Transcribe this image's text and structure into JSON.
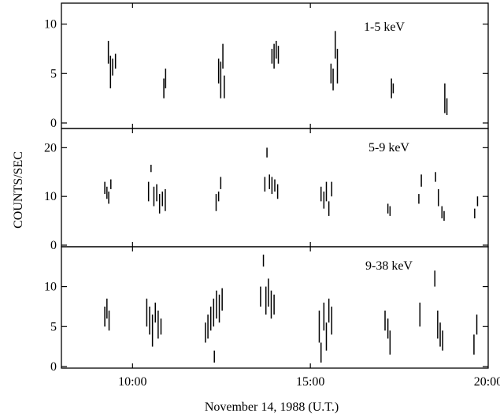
{
  "chart_data": {
    "type": "scatter",
    "ylabel": "COUNTS/SEC",
    "xlabel": "November 14, 1988 (U.T.)",
    "x_unit": "hours U.T.",
    "xlim": [
      8.0,
      20.0
    ],
    "x_ticks": [
      10,
      15,
      20
    ],
    "x_tick_labels": [
      "10:00",
      "15:00",
      "20:00"
    ],
    "panels": [
      {
        "label": "1-5 keV",
        "ylim": [
          0,
          11
        ],
        "y_ticks": [
          0,
          5,
          10
        ],
        "y_tick_labels": [
          "0",
          "5",
          "10"
        ],
        "segments": [
          {
            "x": 9.32,
            "y_low": 6.0,
            "y_high": 8.3
          },
          {
            "x": 9.38,
            "y_low": 3.5,
            "y_high": 6.8
          },
          {
            "x": 9.44,
            "y_low": 4.8,
            "y_high": 6.5
          },
          {
            "x": 9.52,
            "y_low": 5.5,
            "y_high": 7.0
          },
          {
            "x": 10.88,
            "y_low": 2.5,
            "y_high": 4.5
          },
          {
            "x": 10.93,
            "y_low": 3.5,
            "y_high": 5.5
          },
          {
            "x": 12.42,
            "y_low": 4.0,
            "y_high": 6.5
          },
          {
            "x": 12.48,
            "y_low": 2.5,
            "y_high": 6.2
          },
          {
            "x": 12.54,
            "y_low": 5.5,
            "y_high": 8.0
          },
          {
            "x": 12.58,
            "y_low": 2.5,
            "y_high": 4.8
          },
          {
            "x": 13.92,
            "y_low": 6.0,
            "y_high": 7.5
          },
          {
            "x": 13.98,
            "y_low": 5.5,
            "y_high": 8.0
          },
          {
            "x": 14.04,
            "y_low": 6.5,
            "y_high": 8.3
          },
          {
            "x": 14.1,
            "y_low": 6.0,
            "y_high": 7.8
          },
          {
            "x": 15.58,
            "y_low": 4.0,
            "y_high": 6.0
          },
          {
            "x": 15.64,
            "y_low": 3.3,
            "y_high": 5.5
          },
          {
            "x": 15.7,
            "y_low": 6.5,
            "y_high": 9.3
          },
          {
            "x": 15.76,
            "y_low": 4.0,
            "y_high": 7.5
          },
          {
            "x": 17.28,
            "y_low": 2.5,
            "y_high": 4.5
          },
          {
            "x": 17.33,
            "y_low": 3.0,
            "y_high": 4.0
          },
          {
            "x": 18.78,
            "y_low": 1.0,
            "y_high": 4.0
          },
          {
            "x": 18.84,
            "y_low": 0.8,
            "y_high": 2.5
          }
        ]
      },
      {
        "label": "5-9 keV",
        "ylim": [
          0,
          22
        ],
        "y_ticks": [
          0,
          10,
          20
        ],
        "y_tick_labels": [
          "0",
          "10",
          "20"
        ],
        "segments": [
          {
            "x": 9.22,
            "y_low": 10.5,
            "y_high": 13.0
          },
          {
            "x": 9.28,
            "y_low": 9.5,
            "y_high": 12.0
          },
          {
            "x": 9.33,
            "y_low": 8.5,
            "y_high": 11.0
          },
          {
            "x": 9.39,
            "y_low": 11.5,
            "y_high": 13.5
          },
          {
            "x": 10.45,
            "y_low": 9.0,
            "y_high": 13.0
          },
          {
            "x": 10.52,
            "y_low": 15.0,
            "y_high": 16.5
          },
          {
            "x": 10.6,
            "y_low": 8.0,
            "y_high": 12.0
          },
          {
            "x": 10.68,
            "y_low": 9.0,
            "y_high": 12.5
          },
          {
            "x": 10.76,
            "y_low": 6.5,
            "y_high": 10.5
          },
          {
            "x": 10.84,
            "y_low": 8.0,
            "y_high": 11.0
          },
          {
            "x": 10.92,
            "y_low": 7.0,
            "y_high": 11.5
          },
          {
            "x": 12.35,
            "y_low": 7.0,
            "y_high": 10.5
          },
          {
            "x": 12.42,
            "y_low": 9.0,
            "y_high": 11.0
          },
          {
            "x": 12.48,
            "y_low": 11.5,
            "y_high": 14.0
          },
          {
            "x": 13.72,
            "y_low": 11.0,
            "y_high": 14.0
          },
          {
            "x": 13.78,
            "y_low": 18.0,
            "y_high": 20.0
          },
          {
            "x": 13.85,
            "y_low": 11.5,
            "y_high": 14.5
          },
          {
            "x": 13.92,
            "y_low": 10.5,
            "y_high": 14.0
          },
          {
            "x": 14.0,
            "y_low": 11.0,
            "y_high": 13.5
          },
          {
            "x": 14.08,
            "y_low": 9.5,
            "y_high": 12.5
          },
          {
            "x": 15.3,
            "y_low": 9.0,
            "y_high": 12.0
          },
          {
            "x": 15.38,
            "y_low": 7.5,
            "y_high": 11.0
          },
          {
            "x": 15.45,
            "y_low": 9.0,
            "y_high": 13.0
          },
          {
            "x": 15.52,
            "y_low": 6.0,
            "y_high": 9.0
          },
          {
            "x": 15.6,
            "y_low": 10.0,
            "y_high": 13.0
          },
          {
            "x": 17.18,
            "y_low": 6.5,
            "y_high": 8.5
          },
          {
            "x": 17.24,
            "y_low": 6.0,
            "y_high": 8.0
          },
          {
            "x": 18.05,
            "y_low": 8.5,
            "y_high": 10.5
          },
          {
            "x": 18.12,
            "y_low": 12.0,
            "y_high": 14.5
          },
          {
            "x": 18.52,
            "y_low": 13.0,
            "y_high": 15.0
          },
          {
            "x": 18.6,
            "y_low": 8.0,
            "y_high": 11.5
          },
          {
            "x": 18.7,
            "y_low": 5.5,
            "y_high": 8.0
          },
          {
            "x": 18.76,
            "y_low": 5.0,
            "y_high": 7.0
          },
          {
            "x": 19.62,
            "y_low": 5.5,
            "y_high": 7.5
          },
          {
            "x": 19.7,
            "y_low": 8.0,
            "y_high": 10.0
          }
        ]
      },
      {
        "label": "9-38 keV",
        "ylim": [
          0,
          14
        ],
        "y_ticks": [
          0,
          5,
          10
        ],
        "y_tick_labels": [
          "0",
          "5",
          "10"
        ],
        "segments": [
          {
            "x": 9.22,
            "y_low": 5.0,
            "y_high": 7.5
          },
          {
            "x": 9.28,
            "y_low": 6.0,
            "y_high": 8.5
          },
          {
            "x": 9.34,
            "y_low": 4.5,
            "y_high": 7.0
          },
          {
            "x": 10.4,
            "y_low": 5.0,
            "y_high": 8.5
          },
          {
            "x": 10.48,
            "y_low": 4.0,
            "y_high": 7.5
          },
          {
            "x": 10.56,
            "y_low": 2.5,
            "y_high": 6.5
          },
          {
            "x": 10.64,
            "y_low": 5.5,
            "y_high": 8.0
          },
          {
            "x": 10.72,
            "y_low": 3.5,
            "y_high": 7.0
          },
          {
            "x": 10.8,
            "y_low": 4.0,
            "y_high": 6.0
          },
          {
            "x": 12.05,
            "y_low": 3.0,
            "y_high": 5.5
          },
          {
            "x": 12.12,
            "y_low": 3.5,
            "y_high": 6.5
          },
          {
            "x": 12.2,
            "y_low": 4.5,
            "y_high": 7.5
          },
          {
            "x": 12.28,
            "y_low": 5.0,
            "y_high": 8.5
          },
          {
            "x": 12.36,
            "y_low": 6.0,
            "y_high": 9.5
          },
          {
            "x": 12.44,
            "y_low": 5.5,
            "y_high": 9.0
          },
          {
            "x": 12.52,
            "y_low": 7.0,
            "y_high": 9.8
          },
          {
            "x": 12.3,
            "y_low": 0.5,
            "y_high": 2.0
          },
          {
            "x": 13.6,
            "y_low": 7.5,
            "y_high": 10.0
          },
          {
            "x": 13.68,
            "y_low": 12.5,
            "y_high": 14.0
          },
          {
            "x": 13.75,
            "y_low": 6.5,
            "y_high": 10.0
          },
          {
            "x": 13.82,
            "y_low": 7.5,
            "y_high": 11.0
          },
          {
            "x": 13.9,
            "y_low": 6.0,
            "y_high": 9.5
          },
          {
            "x": 13.98,
            "y_low": 6.5,
            "y_high": 9.0
          },
          {
            "x": 15.25,
            "y_low": 3.0,
            "y_high": 7.0
          },
          {
            "x": 15.3,
            "y_low": 0.5,
            "y_high": 3.0
          },
          {
            "x": 15.38,
            "y_low": 4.5,
            "y_high": 8.0
          },
          {
            "x": 15.45,
            "y_low": 2.0,
            "y_high": 5.5
          },
          {
            "x": 15.52,
            "y_low": 5.5,
            "y_high": 8.5
          },
          {
            "x": 15.6,
            "y_low": 4.0,
            "y_high": 7.5
          },
          {
            "x": 17.1,
            "y_low": 4.5,
            "y_high": 7.0
          },
          {
            "x": 17.18,
            "y_low": 3.5,
            "y_high": 6.0
          },
          {
            "x": 17.24,
            "y_low": 1.5,
            "y_high": 4.5
          },
          {
            "x": 18.08,
            "y_low": 5.0,
            "y_high": 8.0
          },
          {
            "x": 18.5,
            "y_low": 10.0,
            "y_high": 12.0
          },
          {
            "x": 18.58,
            "y_low": 3.5,
            "y_high": 7.0
          },
          {
            "x": 18.65,
            "y_low": 2.5,
            "y_high": 5.5
          },
          {
            "x": 18.72,
            "y_low": 2.0,
            "y_high": 4.5
          },
          {
            "x": 19.6,
            "y_low": 1.5,
            "y_high": 4.0
          },
          {
            "x": 19.68,
            "y_low": 4.0,
            "y_high": 6.5
          }
        ]
      }
    ]
  }
}
